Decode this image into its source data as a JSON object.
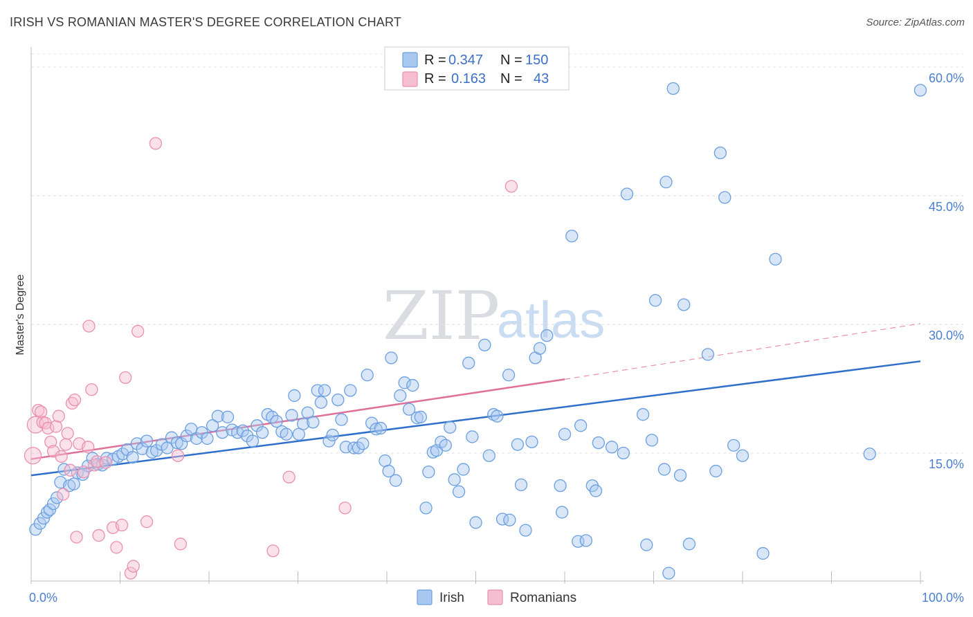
{
  "header": {
    "title": "IRISH VS ROMANIAN MASTER'S DEGREE CORRELATION CHART",
    "source": "Source: ZipAtlas.com"
  },
  "watermark": {
    "zip": "ZIP",
    "atlas": "atlas"
  },
  "legend": {
    "irish": {
      "r_label": "R =",
      "r_value": "0.347",
      "n_label": "N =",
      "n_value": "150"
    },
    "romanian": {
      "r_label": "R =",
      "r_value": "0.163",
      "n_label": "N =",
      "n_value": "43"
    }
  },
  "colors": {
    "irish": "#6a9fe0",
    "irish_fill": "#a9c8f0",
    "irish_line": "#2f6fcc",
    "romanian": "#ea8fae",
    "romanian_fill": "#f6bfd1",
    "romanian_line": "#e0709a"
  },
  "chart_data": {
    "type": "scatter",
    "title": "IRISH VS ROMANIAN MASTER'S DEGREE CORRELATION CHART",
    "xlabel": "",
    "ylabel": "Master's Degree",
    "xlim": [
      0,
      100
    ],
    "ylim": [
      0,
      62
    ],
    "x_tick_labels": [
      "0.0%",
      "100.0%"
    ],
    "y_ticks": [
      15,
      30,
      45,
      60
    ],
    "y_tick_labels": [
      "15.0%",
      "30.0%",
      "45.0%",
      "60.0%"
    ],
    "grid": "horizontal dashed",
    "legend_position": "top-center",
    "bottom_legend": [
      "Irish",
      "Romanians"
    ],
    "series": [
      {
        "name": "Irish",
        "r": 0.347,
        "n": 150,
        "trend": {
          "x": [
            0,
            100
          ],
          "y": [
            12.4,
            25.7
          ]
        },
        "points": [
          [
            0.5,
            6.1
          ],
          [
            1.0,
            6.8
          ],
          [
            1.4,
            7.4
          ],
          [
            1.8,
            8.1
          ],
          [
            2.1,
            8.4
          ],
          [
            2.5,
            9.1
          ],
          [
            2.9,
            9.8
          ],
          [
            3.3,
            11.6
          ],
          [
            3.7,
            13.1
          ],
          [
            4.3,
            11.2
          ],
          [
            4.8,
            11.4
          ],
          [
            5.2,
            12.7
          ],
          [
            5.8,
            12.5
          ],
          [
            6.4,
            13.5
          ],
          [
            6.9,
            14.4
          ],
          [
            7.5,
            13.7
          ],
          [
            8.0,
            13.6
          ],
          [
            8.5,
            14.4
          ],
          [
            9.2,
            14.3
          ],
          [
            9.8,
            14.6
          ],
          [
            10.3,
            14.9
          ],
          [
            10.8,
            15.4
          ],
          [
            11.4,
            14.5
          ],
          [
            11.9,
            16.1
          ],
          [
            12.5,
            15.5
          ],
          [
            13.0,
            16.4
          ],
          [
            13.6,
            15.1
          ],
          [
            14.1,
            15.3
          ],
          [
            14.7,
            16.0
          ],
          [
            15.3,
            15.6
          ],
          [
            15.8,
            16.8
          ],
          [
            16.4,
            16.2
          ],
          [
            16.9,
            16.1
          ],
          [
            17.5,
            17.0
          ],
          [
            18.0,
            17.8
          ],
          [
            18.6,
            16.7
          ],
          [
            19.2,
            17.4
          ],
          [
            19.8,
            16.7
          ],
          [
            20.4,
            18.2
          ],
          [
            21.0,
            19.3
          ],
          [
            21.5,
            17.4
          ],
          [
            22.1,
            19.2
          ],
          [
            22.6,
            17.7
          ],
          [
            23.2,
            17.4
          ],
          [
            23.8,
            17.6
          ],
          [
            24.3,
            17.0
          ],
          [
            24.9,
            16.4
          ],
          [
            25.4,
            18.2
          ],
          [
            26.0,
            17.4
          ],
          [
            26.6,
            19.5
          ],
          [
            27.1,
            19.2
          ],
          [
            27.6,
            18.7
          ],
          [
            28.2,
            17.5
          ],
          [
            28.7,
            17.2
          ],
          [
            29.3,
            19.4
          ],
          [
            29.6,
            21.7
          ],
          [
            30.1,
            17.2
          ],
          [
            30.6,
            18.4
          ],
          [
            31.1,
            19.7
          ],
          [
            31.7,
            18.6
          ],
          [
            32.2,
            22.3
          ],
          [
            32.6,
            20.9
          ],
          [
            33.0,
            22.3
          ],
          [
            33.5,
            16.4
          ],
          [
            33.9,
            17.1
          ],
          [
            34.5,
            21.2
          ],
          [
            34.9,
            18.9
          ],
          [
            35.4,
            15.7
          ],
          [
            35.9,
            22.3
          ],
          [
            36.3,
            15.6
          ],
          [
            36.8,
            15.6
          ],
          [
            37.3,
            16.1
          ],
          [
            37.8,
            24.1
          ],
          [
            38.3,
            18.5
          ],
          [
            38.8,
            17.8
          ],
          [
            39.3,
            17.9
          ],
          [
            39.8,
            14.1
          ],
          [
            40.2,
            12.9
          ],
          [
            40.5,
            26.1
          ],
          [
            41.0,
            11.8
          ],
          [
            41.5,
            21.7
          ],
          [
            42.0,
            23.2
          ],
          [
            42.5,
            20.1
          ],
          [
            42.9,
            22.9
          ],
          [
            43.4,
            19.1
          ],
          [
            43.8,
            19.2
          ],
          [
            44.4,
            8.6
          ],
          [
            44.7,
            12.8
          ],
          [
            45.2,
            15.1
          ],
          [
            45.6,
            15.3
          ],
          [
            46.1,
            16.3
          ],
          [
            46.6,
            15.9
          ],
          [
            47.1,
            18.0
          ],
          [
            47.6,
            11.9
          ],
          [
            48.1,
            10.5
          ],
          [
            48.6,
            13.1
          ],
          [
            49.2,
            25.5
          ],
          [
            49.6,
            16.9
          ],
          [
            50.0,
            6.9
          ],
          [
            51.0,
            27.6
          ],
          [
            51.5,
            14.7
          ],
          [
            52.0,
            19.5
          ],
          [
            52.4,
            19.3
          ],
          [
            53.0,
            7.3
          ],
          [
            53.7,
            24.1
          ],
          [
            53.8,
            7.2
          ],
          [
            54.7,
            16.0
          ],
          [
            55.1,
            11.3
          ],
          [
            55.6,
            6.0
          ],
          [
            56.3,
            16.3
          ],
          [
            56.7,
            26.1
          ],
          [
            57.2,
            27.2
          ],
          [
            58.0,
            28.7
          ],
          [
            59.5,
            11.2
          ],
          [
            59.7,
            8.1
          ],
          [
            60.0,
            17.2
          ],
          [
            60.8,
            40.3
          ],
          [
            61.5,
            4.7
          ],
          [
            61.8,
            18.2
          ],
          [
            62.4,
            4.8
          ],
          [
            63.1,
            11.2
          ],
          [
            63.5,
            10.6
          ],
          [
            63.8,
            16.2
          ],
          [
            65.3,
            15.7
          ],
          [
            66.6,
            15.0
          ],
          [
            67.0,
            45.2
          ],
          [
            68.8,
            19.5
          ],
          [
            69.2,
            4.3
          ],
          [
            69.8,
            16.5
          ],
          [
            70.2,
            32.8
          ],
          [
            71.2,
            13.1
          ],
          [
            71.4,
            46.6
          ],
          [
            71.7,
            1.0
          ],
          [
            72.2,
            57.5
          ],
          [
            73.0,
            12.4
          ],
          [
            73.4,
            32.3
          ],
          [
            74.0,
            4.4
          ],
          [
            76.1,
            26.5
          ],
          [
            77.0,
            12.9
          ],
          [
            77.5,
            50.0
          ],
          [
            78.0,
            44.8
          ],
          [
            79.0,
            15.9
          ],
          [
            80.0,
            14.7
          ],
          [
            82.3,
            3.3
          ],
          [
            83.7,
            37.6
          ],
          [
            94.3,
            14.9
          ],
          [
            100.0,
            57.3
          ]
        ]
      },
      {
        "name": "Romanians",
        "r": 0.163,
        "n": 43,
        "trend_solid": {
          "x": [
            0,
            60
          ],
          "y": [
            14.3,
            23.6
          ]
        },
        "trend_dashed": {
          "x": [
            60,
            100
          ],
          "y": [
            23.6,
            30.1
          ]
        },
        "points": [
          [
            0.2,
            14.7
          ],
          [
            0.5,
            18.3
          ],
          [
            0.8,
            20.0
          ],
          [
            1.1,
            19.8
          ],
          [
            1.3,
            18.6
          ],
          [
            1.6,
            18.5
          ],
          [
            1.9,
            17.9
          ],
          [
            2.2,
            16.3
          ],
          [
            2.5,
            15.2
          ],
          [
            2.8,
            18.1
          ],
          [
            3.1,
            19.3
          ],
          [
            3.4,
            14.6
          ],
          [
            3.6,
            10.2
          ],
          [
            3.9,
            16.0
          ],
          [
            4.1,
            17.3
          ],
          [
            4.4,
            13.0
          ],
          [
            4.6,
            20.8
          ],
          [
            4.9,
            21.2
          ],
          [
            5.1,
            5.2
          ],
          [
            5.4,
            16.1
          ],
          [
            5.9,
            12.8
          ],
          [
            6.4,
            15.7
          ],
          [
            6.5,
            29.8
          ],
          [
            6.8,
            22.4
          ],
          [
            7.1,
            13.6
          ],
          [
            7.4,
            14.0
          ],
          [
            7.6,
            5.4
          ],
          [
            8.4,
            13.9
          ],
          [
            9.2,
            6.3
          ],
          [
            9.6,
            4.0
          ],
          [
            10.2,
            6.6
          ],
          [
            10.6,
            23.8
          ],
          [
            11.2,
            1.0
          ],
          [
            11.5,
            1.8
          ],
          [
            12.0,
            29.2
          ],
          [
            13.0,
            7.0
          ],
          [
            14.0,
            51.1
          ],
          [
            16.5,
            14.7
          ],
          [
            16.8,
            4.4
          ],
          [
            27.2,
            3.6
          ],
          [
            29.0,
            12.2
          ],
          [
            35.3,
            8.6
          ],
          [
            54.0,
            46.1
          ]
        ]
      }
    ]
  }
}
